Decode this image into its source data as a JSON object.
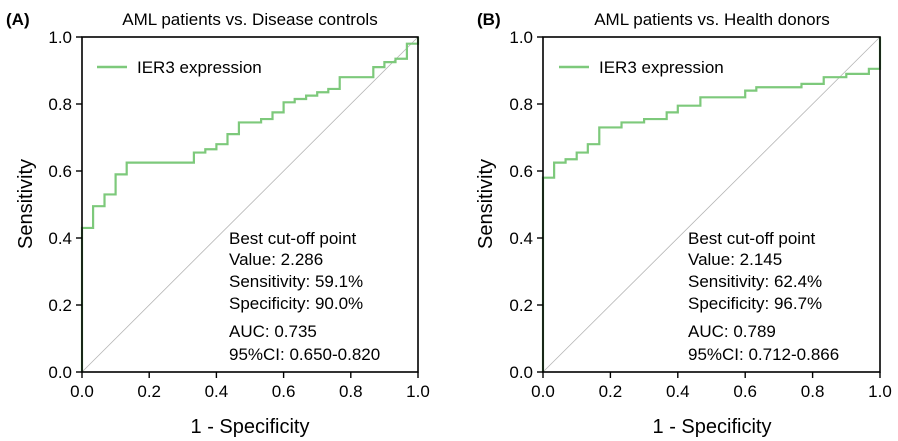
{
  "chart_data": [
    {
      "type": "line",
      "panel_label": "(A)",
      "title": "AML patients vs. Disease controls",
      "xlabel": "1 - Specificity",
      "ylabel": "Sensitivity",
      "xlim": [
        0,
        1
      ],
      "ylim": [
        0,
        1
      ],
      "xticks": [
        "0.0",
        "0.2",
        "0.4",
        "0.6",
        "0.8",
        "1.0"
      ],
      "yticks": [
        "0.0",
        "0.2",
        "0.4",
        "0.6",
        "0.8",
        "1.0"
      ],
      "grid": false,
      "legend_position": "top-left",
      "colors": {
        "roc": "#7dc97b",
        "reference": "#b5b5b5"
      },
      "series": [
        {
          "name": "IER3 expression",
          "x": [
            0,
            0,
            0.033,
            0.033,
            0.067,
            0.067,
            0.1,
            0.1,
            0.133,
            0.133,
            0.333,
            0.333,
            0.367,
            0.367,
            0.4,
            0.4,
            0.433,
            0.433,
            0.467,
            0.467,
            0.533,
            0.533,
            0.567,
            0.567,
            0.6,
            0.6,
            0.633,
            0.633,
            0.667,
            0.667,
            0.7,
            0.7,
            0.733,
            0.733,
            0.767,
            0.767,
            0.867,
            0.867,
            0.9,
            0.9,
            0.933,
            0.933,
            0.967,
            0.967,
            1.0,
            1.0
          ],
          "y": [
            0,
            0.43,
            0.43,
            0.495,
            0.495,
            0.53,
            0.53,
            0.59,
            0.59,
            0.625,
            0.625,
            0.655,
            0.655,
            0.665,
            0.665,
            0.68,
            0.68,
            0.71,
            0.71,
            0.745,
            0.745,
            0.755,
            0.755,
            0.775,
            0.775,
            0.805,
            0.805,
            0.815,
            0.815,
            0.825,
            0.825,
            0.835,
            0.835,
            0.845,
            0.845,
            0.88,
            0.88,
            0.91,
            0.91,
            0.925,
            0.925,
            0.935,
            0.935,
            0.98,
            0.98,
            1.0
          ]
        }
      ],
      "annotation": [
        "Best cut-off point",
        "Value: 2.286",
        "Sensitivity: 59.1%",
        "Specificity: 90.0%",
        "AUC: 0.735",
        "95%CI: 0.650-0.820"
      ]
    },
    {
      "type": "line",
      "panel_label": "(B)",
      "title": "AML patients vs. Health donors",
      "xlabel": "1 - Specificity",
      "ylabel": "Sensitivity",
      "xlim": [
        0,
        1
      ],
      "ylim": [
        0,
        1
      ],
      "xticks": [
        "0.0",
        "0.2",
        "0.4",
        "0.6",
        "0.8",
        "1.0"
      ],
      "yticks": [
        "0.0",
        "0.2",
        "0.4",
        "0.6",
        "0.8",
        "1.0"
      ],
      "grid": false,
      "legend_position": "top-left",
      "colors": {
        "roc": "#7dc97b",
        "reference": "#b5b5b5"
      },
      "series": [
        {
          "name": "IER3 expression",
          "x": [
            0,
            0,
            0.033,
            0.033,
            0.067,
            0.067,
            0.1,
            0.1,
            0.133,
            0.133,
            0.167,
            0.167,
            0.233,
            0.233,
            0.3,
            0.3,
            0.367,
            0.367,
            0.4,
            0.4,
            0.467,
            0.467,
            0.6,
            0.6,
            0.633,
            0.633,
            0.767,
            0.767,
            0.833,
            0.833,
            0.9,
            0.9,
            0.967,
            0.967,
            1.0,
            1.0
          ],
          "y": [
            0,
            0.58,
            0.58,
            0.625,
            0.625,
            0.635,
            0.635,
            0.655,
            0.655,
            0.68,
            0.68,
            0.73,
            0.73,
            0.745,
            0.745,
            0.755,
            0.755,
            0.775,
            0.775,
            0.795,
            0.795,
            0.82,
            0.82,
            0.84,
            0.84,
            0.85,
            0.85,
            0.86,
            0.86,
            0.88,
            0.88,
            0.89,
            0.89,
            0.905,
            0.905,
            1.0
          ]
        }
      ],
      "annotation": [
        "Best cut-off point",
        "Value: 2.145",
        "Sensitivity: 62.4%",
        "Specificity: 96.7%",
        "AUC: 0.789",
        "95%CI: 0.712-0.866"
      ]
    }
  ]
}
